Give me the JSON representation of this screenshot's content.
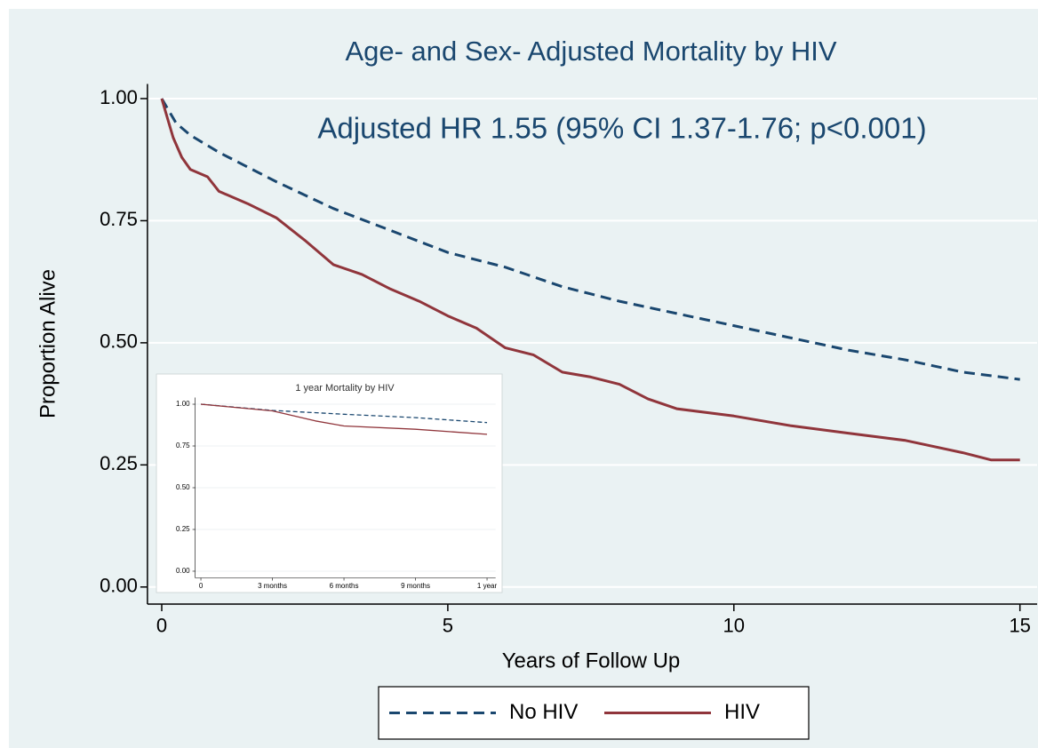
{
  "chart_data": [
    {
      "type": "line",
      "title": "Age- and Sex- Adjusted Mortality by HIV",
      "annotation": "Adjusted HR 1.55 (95% CI 1.37-1.76; p<0.001)",
      "xlabel": "Years of Follow Up",
      "ylabel": "Proportion Alive",
      "xlim": [
        -0.25,
        15.3
      ],
      "ylim": [
        -0.035,
        1.03
      ],
      "xticks": [
        0,
        5,
        10,
        15
      ],
      "yticks": [
        {
          "value": 0,
          "label": "0.00"
        },
        {
          "value": 0.25,
          "label": "0.25"
        },
        {
          "value": 0.5,
          "label": "0.50"
        },
        {
          "value": 0.75,
          "label": "0.75"
        },
        {
          "value": 1,
          "label": "1.00"
        }
      ],
      "grid": true,
      "legend": "bottom",
      "series": [
        {
          "name": "No HIV",
          "color": "#1a476f",
          "dash": true,
          "x": [
            0,
            0.25,
            0.5,
            1,
            2,
            3,
            4,
            5,
            6,
            7,
            8,
            9,
            10,
            11,
            12,
            13,
            14,
            15
          ],
          "values": [
            1.0,
            0.95,
            0.925,
            0.89,
            0.83,
            0.775,
            0.73,
            0.685,
            0.655,
            0.615,
            0.585,
            0.56,
            0.535,
            0.51,
            0.485,
            0.465,
            0.44,
            0.425
          ]
        },
        {
          "name": "HIV",
          "color": "#90353b",
          "dash": false,
          "x": [
            0,
            0.1,
            0.2,
            0.35,
            0.5,
            0.8,
            1,
            1.5,
            2,
            2.5,
            3,
            3.5,
            4,
            4.5,
            5,
            5.5,
            6,
            6.5,
            7,
            7.5,
            8,
            8.5,
            9,
            10,
            11,
            12,
            13,
            14,
            14.5,
            15
          ],
          "values": [
            1.0,
            0.96,
            0.92,
            0.88,
            0.855,
            0.84,
            0.81,
            0.785,
            0.756,
            0.71,
            0.66,
            0.64,
            0.61,
            0.585,
            0.555,
            0.53,
            0.49,
            0.475,
            0.44,
            0.43,
            0.415,
            0.385,
            0.365,
            0.35,
            0.33,
            0.315,
            0.3,
            0.275,
            0.26,
            0.26
          ]
        }
      ]
    },
    {
      "type": "line",
      "title": "1 year Mortality by HIV",
      "xlim": [
        -0.02,
        1.03
      ],
      "ylim": [
        -0.04,
        1.04
      ],
      "xticks": [
        0,
        {
          "value": 0.25,
          "label": "3 months"
        },
        {
          "value": 0.5,
          "label": "6 months"
        },
        {
          "value": 0.75,
          "label": "9 months"
        },
        {
          "value": 1,
          "label": "1 year"
        }
      ],
      "yticks": [
        {
          "value": 0,
          "label": "0.00"
        },
        {
          "value": 0.25,
          "label": "0.25"
        },
        {
          "value": 0.5,
          "label": "0.50"
        },
        {
          "value": 0.75,
          "label": "0.75"
        },
        {
          "value": 1,
          "label": "1.00"
        }
      ],
      "grid": true,
      "series": [
        {
          "color": "#1a476f",
          "dash": true,
          "x": [
            0,
            0.25,
            0.5,
            0.75,
            1
          ],
          "values": [
            1.0,
            0.963,
            0.94,
            0.92,
            0.89
          ]
        },
        {
          "color": "#90353b",
          "dash": false,
          "x": [
            0,
            0.25,
            0.4,
            0.5,
            0.75,
            1
          ],
          "values": [
            1.0,
            0.96,
            0.9,
            0.87,
            0.85,
            0.82
          ]
        }
      ]
    }
  ]
}
